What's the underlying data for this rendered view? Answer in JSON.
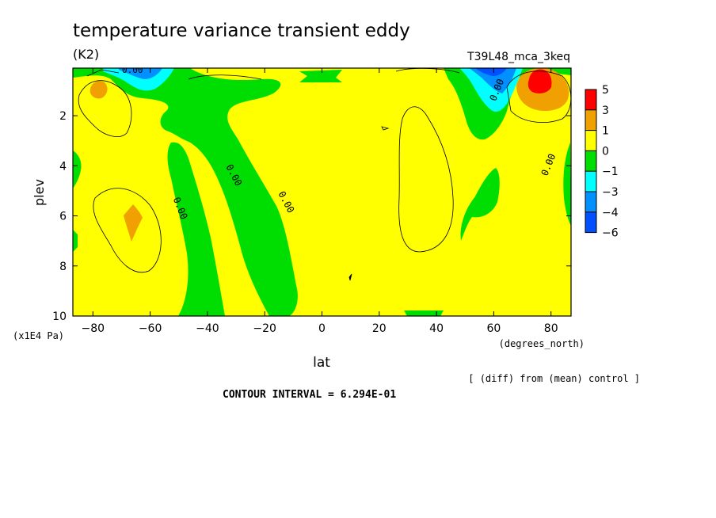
{
  "chart_data": {
    "type": "contour",
    "title": "temperature variance transient eddy",
    "units": "(K2)",
    "experiment": "T39L48_mca_3keq",
    "xlabel": "lat",
    "x_unit": "(degrees_north)",
    "ylabel": "plev",
    "y_unit": "(x1E4 Pa)",
    "note": "[ (diff) from (mean) control ]",
    "contour_interval": "CONTOUR INTERVAL = 6.294E-01",
    "xlim": [
      -87,
      87
    ],
    "ylim": [
      10,
      0.1
    ],
    "y_inverted": true,
    "x_ticks": [
      "-80",
      "-60",
      "-40",
      "-20",
      "0",
      "20",
      "40",
      "60",
      "80"
    ],
    "x_tick_values": [
      -80,
      -60,
      -40,
      -20,
      0,
      20,
      40,
      60,
      80
    ],
    "y_ticks": [
      "2",
      "4",
      "6",
      "8",
      "10"
    ],
    "y_tick_values": [
      2,
      4,
      6,
      8,
      10
    ],
    "contour_labels": [
      {
        "text": "0.00",
        "lat": -64,
        "plev": 0.1
      },
      {
        "text": "0.00",
        "lat": -52,
        "plev": 5.5
      },
      {
        "text": "0.00",
        "lat": -33,
        "plev": 4.2
      },
      {
        "text": "0.00",
        "lat": -16,
        "plev": 5.3
      },
      {
        "text": "0.00",
        "lat": 60,
        "plev": 1.2
      },
      {
        "text": "0.00",
        "lat": 80,
        "plev": 3.9
      }
    ],
    "colorbar": {
      "levels": [
        "5",
        "3",
        "1",
        "0",
        "−1",
        "−3",
        "−4",
        "−6"
      ],
      "colors": [
        "#ff0000",
        "#f0a000",
        "#ffff00",
        "#00dd00",
        "#00ffff",
        "#0090ff",
        "#0050ff"
      ]
    }
  }
}
